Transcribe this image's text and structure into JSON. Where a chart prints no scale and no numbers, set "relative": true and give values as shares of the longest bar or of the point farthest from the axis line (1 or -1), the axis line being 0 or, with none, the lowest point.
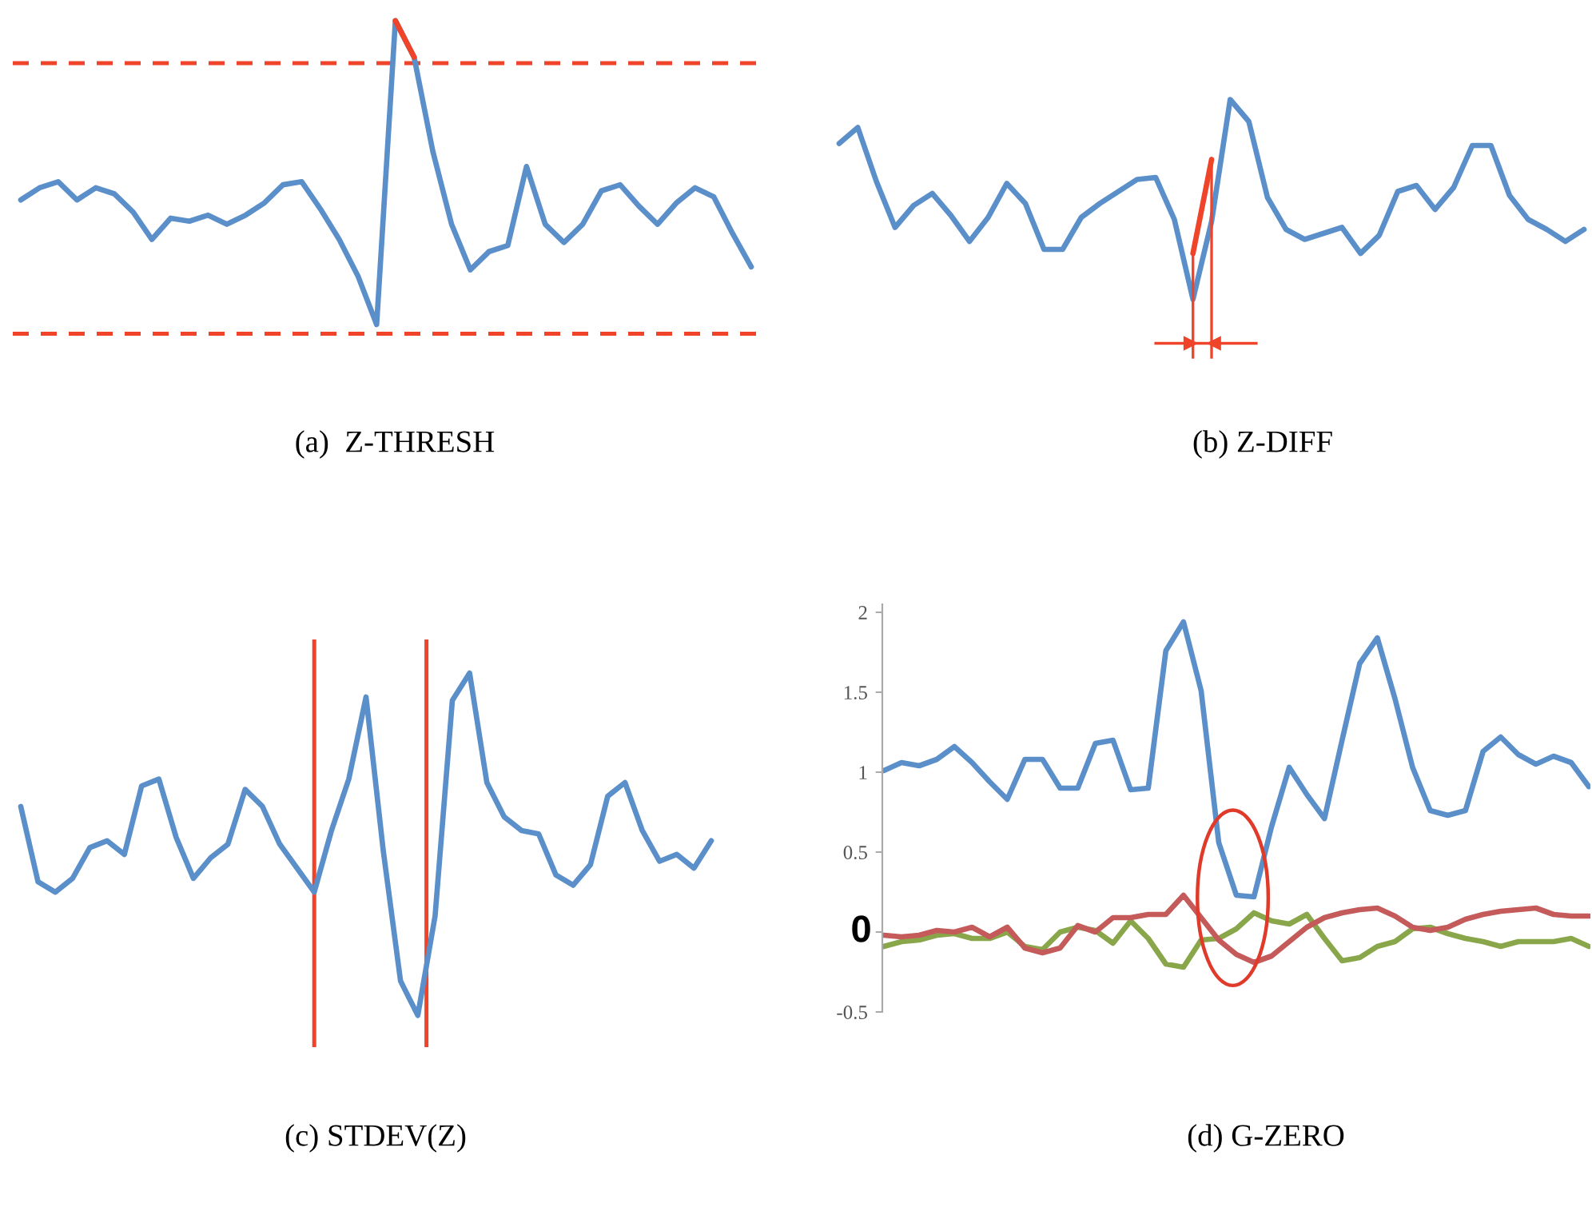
{
  "chart_data": [
    {
      "type": "line",
      "relative": true,
      "xlabel": "(a)  Z-THRESH",
      "categories": [
        null,
        null,
        null,
        null,
        null,
        null,
        null,
        null,
        null,
        null,
        null,
        null,
        null,
        null,
        null,
        null,
        null,
        null,
        null,
        null,
        null,
        null,
        null,
        null,
        null,
        null,
        null,
        null,
        null,
        null,
        null,
        null,
        null,
        null,
        null,
        null,
        null,
        null,
        null,
        null
      ],
      "series": [
        {
          "color": "#5b8fc9",
          "values": [
            0.41,
            0.45,
            0.47,
            0.41,
            0.45,
            0.43,
            0.37,
            0.28,
            0.35,
            0.34,
            0.36,
            0.33,
            0.36,
            0.4,
            0.46,
            0.47,
            0.38,
            0.28,
            0.16,
            0,
            1,
            0.88,
            0.57,
            0.33,
            0.18,
            0.24,
            0.26,
            0.52,
            0.33,
            0.27,
            0.33,
            0.44,
            0.46,
            0.39,
            0.33,
            0.4,
            0.45,
            0.42,
            0.3,
            0.19
          ]
        },
        {
          "color": "#f0442a",
          "values": [
            null,
            null,
            null,
            null,
            null,
            null,
            null,
            null,
            null,
            null,
            null,
            null,
            null,
            null,
            null,
            null,
            null,
            null,
            null,
            null,
            1,
            0.88,
            null,
            null,
            null,
            null,
            null,
            null,
            null,
            null,
            null,
            null,
            null,
            null,
            null,
            null,
            null,
            null,
            null,
            null
          ]
        }
      ],
      "ref_lines": [
        {
          "axis": "y",
          "value": 0.86,
          "color": "#f0442a",
          "line_style": "dashed"
        },
        {
          "axis": "y",
          "value": -0.03,
          "color": "#f0442a",
          "line_style": "dashed"
        }
      ]
    },
    {
      "type": "line",
      "relative": true,
      "xlabel": "(b) Z-DIFF",
      "categories": [
        null,
        null,
        null,
        null,
        null,
        null,
        null,
        null,
        null,
        null,
        null,
        null,
        null,
        null,
        null,
        null,
        null,
        null,
        null,
        null,
        null,
        null,
        null,
        null,
        null,
        null,
        null,
        null,
        null,
        null,
        null,
        null,
        null,
        null,
        null,
        null,
        null,
        null,
        null,
        null,
        null
      ],
      "series": [
        {
          "color": "#5b8fc9",
          "values": [
            0.78,
            0.86,
            0.59,
            0.36,
            0.47,
            0.53,
            0.42,
            0.29,
            0.41,
            0.58,
            0.48,
            0.25,
            0.25,
            0.41,
            0.48,
            0.54,
            0.6,
            0.61,
            0.4,
            0,
            0.39,
            1,
            0.89,
            0.51,
            0.35,
            0.3,
            0.33,
            0.36,
            0.23,
            0.32,
            0.54,
            0.57,
            0.45,
            0.56,
            0.77,
            0.77,
            0.52,
            0.4,
            0.35,
            0.29,
            0.35
          ]
        },
        {
          "color": "#f0442a",
          "values": [
            null,
            null,
            null,
            null,
            null,
            null,
            null,
            null,
            null,
            null,
            null,
            null,
            null,
            null,
            null,
            null,
            null,
            null,
            null,
            0.23,
            0.7,
            null,
            null,
            null,
            null,
            null,
            null,
            null,
            null,
            null,
            null,
            null,
            null,
            null,
            null,
            null,
            null,
            null,
            null,
            null,
            null
          ]
        }
      ]
    },
    {
      "type": "line",
      "relative": true,
      "xlabel": "(c) STDEV(Z)",
      "categories": [
        null,
        null,
        null,
        null,
        null,
        null,
        null,
        null,
        null,
        null,
        null,
        null,
        null,
        null,
        null,
        null,
        null,
        null,
        null,
        null,
        null,
        null,
        null,
        null,
        null,
        null,
        null,
        null,
        null,
        null,
        null,
        null,
        null,
        null,
        null,
        null,
        null,
        null,
        null,
        null,
        null
      ],
      "series": [
        {
          "color": "#5b8fc9",
          "values": [
            0.61,
            0.39,
            0.36,
            0.4,
            0.49,
            0.51,
            0.47,
            0.67,
            0.69,
            0.52,
            0.4,
            0.46,
            0.5,
            0.66,
            0.61,
            0.5,
            0.43,
            0.36,
            0.54,
            0.69,
            0.93,
            0.48,
            0.1,
            0,
            0.29,
            0.92,
            1,
            0.68,
            0.58,
            0.54,
            0.53,
            0.41,
            0.38,
            0.44,
            0.64,
            0.68,
            0.54,
            0.45,
            0.47,
            0.43,
            0.51
          ]
        }
      ]
    },
    {
      "type": "line",
      "xlabel": "(d) G-ZERO",
      "tick_labels": "y",
      "ylim": [
        -0.5,
        2.05
      ],
      "yticks": [
        -0.5,
        {
          "value": 0,
          "label": null
        },
        0.5,
        1,
        1.5,
        2
      ],
      "annotations": [
        "0"
      ],
      "categories": [
        null,
        null,
        null,
        null,
        null,
        null,
        null,
        null,
        null,
        null,
        null,
        null,
        null,
        null,
        null,
        null,
        null,
        null,
        null,
        null,
        null,
        null,
        null,
        null,
        null,
        null,
        null,
        null,
        null,
        null,
        null,
        null,
        null,
        null,
        null,
        null,
        null,
        null,
        null,
        null,
        null
      ],
      "series": [
        {
          "color": "#5b8fc9",
          "values": [
            1.01,
            1.06,
            1.04,
            1.08,
            1.16,
            1.06,
            0.94,
            0.83,
            1.08,
            1.08,
            0.9,
            0.9,
            1.18,
            1.2,
            0.89,
            0.9,
            1.76,
            1.94,
            1.51,
            0.56,
            0.23,
            0.22,
            0.66,
            1.03,
            0.86,
            0.71,
            1.2,
            1.68,
            1.84,
            1.46,
            1.03,
            0.76,
            0.73,
            0.76,
            1.13,
            1.22,
            1.11,
            1.05,
            1.1,
            1.06,
            0.91
          ]
        },
        {
          "color": "#8aa64a",
          "values": [
            -0.09,
            -0.06,
            -0.05,
            -0.02,
            -0.01,
            -0.04,
            -0.04,
            0,
            -0.09,
            -0.11,
            0,
            0.03,
            0.01,
            -0.07,
            0.07,
            -0.04,
            -0.2,
            -0.22,
            -0.05,
            -0.04,
            0.02,
            0.12,
            0.07,
            0.05,
            0.11,
            -0.04,
            -0.18,
            -0.16,
            -0.09,
            -0.06,
            0.02,
            0.03,
            -0.01,
            -0.04,
            -0.06,
            -0.09,
            -0.06,
            -0.06,
            -0.06,
            -0.04,
            -0.09
          ]
        },
        {
          "color": "#c45a5a",
          "values": [
            -0.02,
            -0.03,
            -0.02,
            0.01,
            0,
            0.03,
            -0.03,
            0.03,
            -0.1,
            -0.13,
            -0.1,
            0.04,
            0,
            0.09,
            0.09,
            0.11,
            0.11,
            0.23,
            0.09,
            -0.05,
            -0.14,
            -0.19,
            -0.15,
            -0.06,
            0.03,
            0.09,
            0.12,
            0.14,
            0.15,
            0.1,
            0.03,
            0.01,
            0.03,
            0.08,
            0.11,
            0.13,
            0.14,
            0.15,
            0.11,
            0.1,
            0.1
          ]
        }
      ]
    }
  ]
}
